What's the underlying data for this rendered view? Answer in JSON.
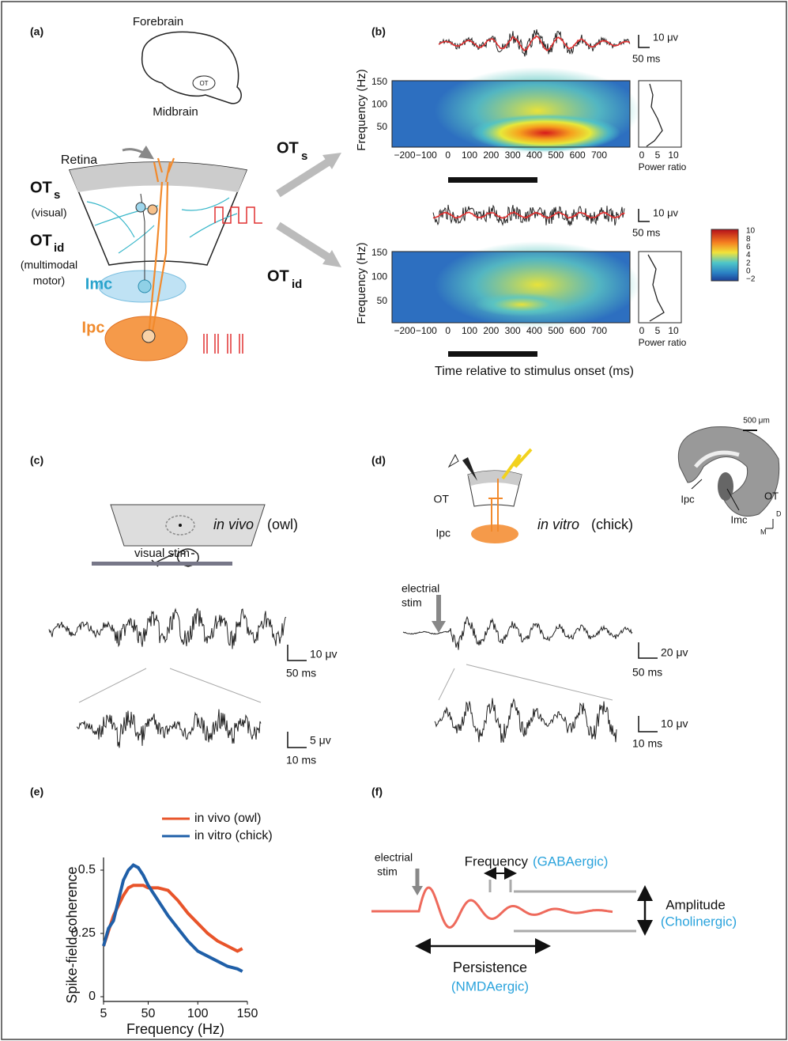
{
  "panel_a": {
    "label": "(a)",
    "forebrain": "Forebrain",
    "midbrain": "Midbrain",
    "ot_small": "OT",
    "retina": "Retina",
    "ots_main": "OT",
    "ots_sub": "s",
    "visual": "(visual)",
    "otid_main": "OT",
    "otid_sub": "id",
    "multimodal": "(multimodal",
    "motor": "motor)",
    "imc": "Imc",
    "ipc": "Ipc",
    "arrow_ots_main": "OT",
    "arrow_ots_sub": "s",
    "arrow_otid_main": "OT",
    "arrow_otid_sub": "id"
  },
  "panel_b": {
    "label": "(b)",
    "trace1_amp": "10 μv",
    "trace1_time": "50 ms",
    "trace2_amp": "10 μv",
    "trace2_time": "50 ms",
    "ylabel": "Frequency (Hz)",
    "freq_ticks": [
      "150",
      "100",
      "50"
    ],
    "time_ticks": [
      "−200",
      "−100",
      "0",
      "100",
      "200",
      "300",
      "400",
      "500",
      "600",
      "700"
    ],
    "power_ticks": [
      "0",
      "5",
      "10"
    ],
    "power_label": "Power ratio",
    "colorbar_ticks": [
      "10",
      "8",
      "6",
      "4",
      "2",
      "0",
      "−2"
    ],
    "xlabel": "Time relative to stimulus onset (ms)"
  },
  "panel_c": {
    "label": "(c)",
    "in_vivo": "in vivo",
    "owl": "(owl)",
    "visual_stim": "visual stim",
    "amp1": "10 μv",
    "time1": "50 ms",
    "amp2": "5 μv",
    "time2": "10 ms"
  },
  "panel_d": {
    "label": "(d)",
    "ot": "OT",
    "ipc": "Ipc",
    "in_vitro": "in vitro",
    "chick": "(chick)",
    "scale": "500 μm",
    "hist_ipc": "Ipc",
    "hist_imc": "Imc",
    "hist_ot": "OT",
    "dir_d": "D",
    "dir_m": "M",
    "stim_1": "electrial",
    "stim_2": "stim",
    "amp1": "20 μv",
    "time1": "50 ms",
    "amp2": "10 μv",
    "time2": "10 ms"
  },
  "panel_e_label": "(e)",
  "chart_data": {
    "type": "line",
    "ylabel": "Spike-field coherence",
    "xlabel": "Frequency (Hz)",
    "x": [
      5,
      10,
      15,
      20,
      25,
      30,
      35,
      40,
      45,
      50,
      60,
      70,
      80,
      90,
      100,
      110,
      120,
      130,
      140,
      145
    ],
    "series": [
      {
        "name": "in vivo (owl)",
        "color": "#e8542a",
        "values": [
          0.2,
          0.26,
          0.32,
          0.36,
          0.4,
          0.43,
          0.44,
          0.44,
          0.44,
          0.43,
          0.43,
          0.42,
          0.38,
          0.33,
          0.29,
          0.25,
          0.22,
          0.2,
          0.18,
          0.19
        ]
      },
      {
        "name": "in vitro (chick)",
        "color": "#1f5fa8",
        "values": [
          0.2,
          0.27,
          0.3,
          0.38,
          0.46,
          0.5,
          0.52,
          0.51,
          0.48,
          0.44,
          0.38,
          0.32,
          0.27,
          0.22,
          0.18,
          0.16,
          0.14,
          0.12,
          0.11,
          0.1
        ]
      }
    ],
    "xlim": [
      5,
      150
    ],
    "ylim": [
      0,
      0.55
    ],
    "xticks": [
      5,
      50,
      100,
      150
    ],
    "yticks": [
      0,
      0.25,
      0.5
    ]
  },
  "panel_f": {
    "label": "(f)",
    "stim_1": "electrial",
    "stim_2": "stim",
    "frequency": "Frequency",
    "gaba": "(GABAergic)",
    "amplitude": "Amplitude",
    "cholinergic": "(Cholinergic)",
    "persistence": "Persistence",
    "nmda": "(NMDAergic)"
  }
}
